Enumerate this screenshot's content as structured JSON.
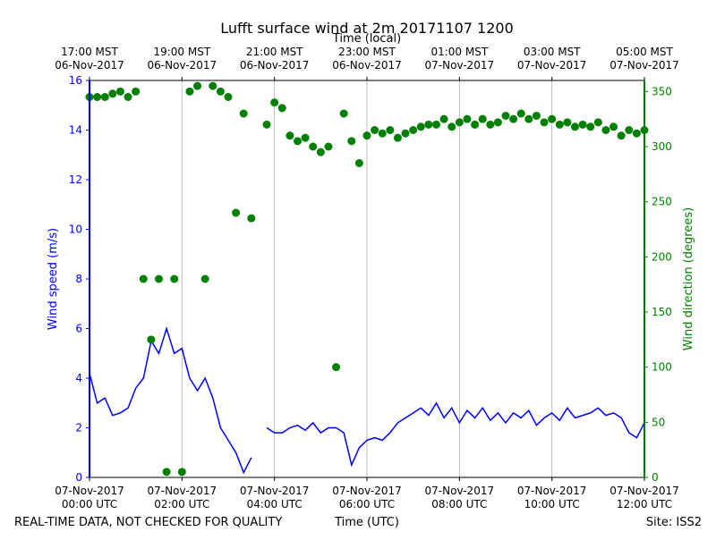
{
  "chart_data": {
    "type": "line",
    "title": "Lufft surface wind at 2m 20171107 1200",
    "x_label": "Time (UTC)",
    "x2_label": "Time (local)",
    "y_label": "Wind speed (m/s)",
    "y2_label": "Wind direction (degrees)",
    "footer_left": "REAL-TIME DATA, NOT CHECKED FOR QUALITY",
    "footer_right": "Site: ISS2",
    "x": [
      "00:00",
      "00:10",
      "00:20",
      "00:30",
      "00:40",
      "00:50",
      "01:00",
      "01:10",
      "01:20",
      "01:30",
      "01:40",
      "01:50",
      "02:00",
      "02:10",
      "02:20",
      "02:30",
      "02:40",
      "02:50",
      "03:00",
      "03:10",
      "03:20",
      "03:30",
      "03:40",
      "03:50",
      "04:00",
      "04:10",
      "04:20",
      "04:30",
      "04:40",
      "04:50",
      "05:00",
      "05:10",
      "05:20",
      "05:30",
      "05:40",
      "05:50",
      "06:00",
      "06:10",
      "06:20",
      "06:30",
      "06:40",
      "06:50",
      "07:00",
      "07:10",
      "07:20",
      "07:30",
      "07:40",
      "07:50",
      "08:00",
      "08:10",
      "08:20",
      "08:30",
      "08:40",
      "08:50",
      "09:00",
      "09:10",
      "09:20",
      "09:30",
      "09:40",
      "09:50",
      "10:00",
      "10:10",
      "10:20",
      "10:30",
      "10:40",
      "10:50",
      "11:00",
      "11:10",
      "11:20",
      "11:30",
      "11:40",
      "11:50",
      "12:00"
    ],
    "xlim": [
      "00:00",
      "12:00"
    ],
    "xticks": [
      {
        "value": "00:00",
        "label": "07-Nov-2017\n00:00 UTC"
      },
      {
        "value": "02:00",
        "label": "07-Nov-2017\n02:00 UTC"
      },
      {
        "value": "04:00",
        "label": "07-Nov-2017\n04:00 UTC"
      },
      {
        "value": "06:00",
        "label": "07-Nov-2017\n06:00 UTC"
      },
      {
        "value": "08:00",
        "label": "07-Nov-2017\n08:00 UTC"
      },
      {
        "value": "10:00",
        "label": "07-Nov-2017\n10:00 UTC"
      },
      {
        "value": "12:00",
        "label": "07-Nov-2017\n12:00 UTC"
      }
    ],
    "x2ticks": [
      {
        "value": "00:00",
        "label": "17:00 MST\n06-Nov-2017"
      },
      {
        "value": "02:00",
        "label": "19:00 MST\n06-Nov-2017"
      },
      {
        "value": "04:00",
        "label": "21:00 MST\n06-Nov-2017"
      },
      {
        "value": "06:00",
        "label": "23:00 MST\n06-Nov-2017"
      },
      {
        "value": "08:00",
        "label": "01:00 MST\n07-Nov-2017"
      },
      {
        "value": "10:00",
        "label": "03:00 MST\n07-Nov-2017"
      },
      {
        "value": "12:00",
        "label": "05:00 MST\n07-Nov-2017"
      }
    ],
    "ylim": [
      0,
      16
    ],
    "yticks": [
      0,
      2,
      4,
      6,
      8,
      10,
      12,
      14,
      16
    ],
    "y2lim": [
      0,
      360
    ],
    "y2ticks": [
      0,
      50,
      100,
      150,
      200,
      250,
      300,
      350
    ],
    "grid": "x",
    "series": [
      {
        "name": "Wind speed",
        "color": "#0000ff",
        "kind": "line",
        "values": [
          4.2,
          3.0,
          3.2,
          2.5,
          2.6,
          2.8,
          3.6,
          4.0,
          5.5,
          5.0,
          6.0,
          5.0,
          5.2,
          4.0,
          3.5,
          4.0,
          3.2,
          2.0,
          1.5,
          1.0,
          0.2,
          0.8,
          null,
          2.0,
          1.8,
          1.8,
          2.0,
          2.1,
          1.9,
          2.2,
          1.8,
          2.0,
          2.0,
          1.8,
          0.5,
          1.2,
          1.5,
          1.6,
          1.5,
          1.8,
          2.2,
          2.4,
          2.6,
          2.8,
          2.5,
          3.0,
          2.4,
          2.8,
          2.2,
          2.7,
          2.4,
          2.8,
          2.3,
          2.6,
          2.2,
          2.6,
          2.4,
          2.7,
          2.1,
          2.4,
          2.6,
          2.3,
          2.8,
          2.4,
          2.5,
          2.6,
          2.8,
          2.5,
          2.6,
          2.4,
          1.8,
          1.6,
          2.2
        ]
      },
      {
        "name": "Wind direction",
        "color": "#008000",
        "kind": "scatter",
        "axis": "y2",
        "values": [
          345,
          345,
          345,
          348,
          350,
          345,
          350,
          180,
          125,
          180,
          5,
          180,
          5,
          350,
          355,
          180,
          355,
          350,
          345,
          240,
          330,
          235,
          null,
          320,
          340,
          335,
          310,
          305,
          308,
          300,
          295,
          300,
          100,
          330,
          305,
          285,
          310,
          315,
          312,
          315,
          308,
          312,
          315,
          318,
          320,
          320,
          325,
          318,
          322,
          325,
          320,
          325,
          320,
          322,
          328,
          325,
          330,
          325,
          328,
          322,
          325,
          320,
          322,
          318,
          320,
          318,
          322,
          315,
          318,
          310,
          315,
          312,
          315
        ]
      }
    ]
  }
}
